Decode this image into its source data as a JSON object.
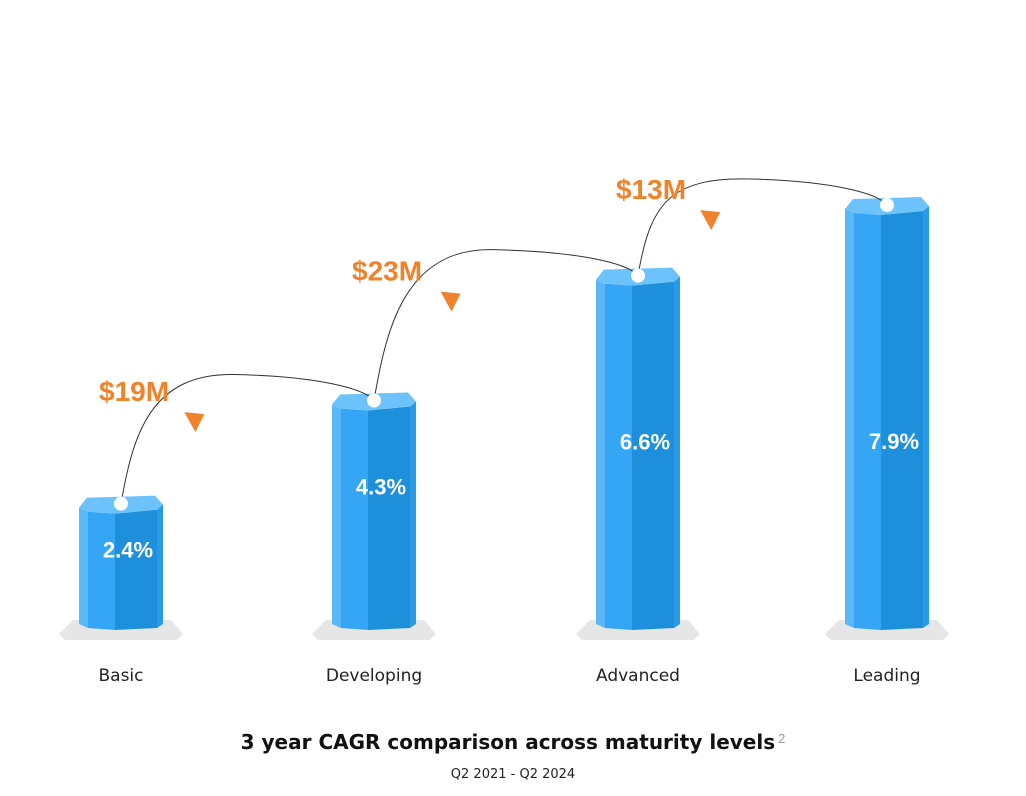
{
  "chart_data": {
    "type": "bar",
    "title": "3 year CAGR comparison across maturity levels",
    "title_footnote": "2",
    "subtitle": "Q2 2021 - Q2 2024",
    "categories": [
      "Basic",
      "Developing",
      "Advanced",
      "Leading"
    ],
    "values": [
      2.4,
      4.3,
      6.6,
      7.9
    ],
    "value_labels": [
      "2.4%",
      "4.3%",
      "6.6%",
      "7.9%"
    ],
    "transitions": [
      {
        "from": "Basic",
        "to": "Developing",
        "label": "$19M"
      },
      {
        "from": "Developing",
        "to": "Advanced",
        "label": "$23M"
      },
      {
        "from": "Advanced",
        "to": "Leading",
        "label": "$13M"
      }
    ],
    "ylim": [
      0,
      9.4
    ],
    "grid": false,
    "legend": "none"
  },
  "colors": {
    "bar_front": "#35a6f5",
    "bar_side": "#1e8fdb",
    "bar_top": "#6cc3fb",
    "value_label": "#ffffff",
    "transition_label": "#f0832a",
    "arrow": "#f0832a",
    "curve": "#333333",
    "base": "#e6e6e6"
  }
}
